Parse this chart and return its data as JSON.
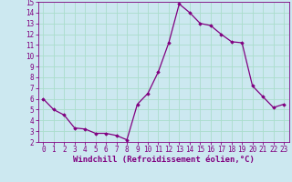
{
  "x": [
    0,
    1,
    2,
    3,
    4,
    5,
    6,
    7,
    8,
    9,
    10,
    11,
    12,
    13,
    14,
    15,
    16,
    17,
    18,
    19,
    20,
    21,
    22,
    23
  ],
  "y": [
    6.0,
    5.0,
    4.5,
    3.3,
    3.2,
    2.8,
    2.8,
    2.6,
    2.2,
    5.5,
    6.5,
    8.5,
    11.2,
    14.8,
    14.0,
    13.0,
    12.8,
    12.0,
    11.3,
    11.2,
    7.2,
    6.2,
    5.2,
    5.5
  ],
  "line_color": "#800080",
  "marker": "D",
  "marker_size": 1.8,
  "line_width": 0.9,
  "xlabel": "Windchill (Refroidissement éolien,°C)",
  "xlim": [
    -0.5,
    23.5
  ],
  "ylim": [
    2,
    15
  ],
  "yticks": [
    2,
    3,
    4,
    5,
    6,
    7,
    8,
    9,
    10,
    11,
    12,
    13,
    14,
    15
  ],
  "xticks": [
    0,
    1,
    2,
    3,
    4,
    5,
    6,
    7,
    8,
    9,
    10,
    11,
    12,
    13,
    14,
    15,
    16,
    17,
    18,
    19,
    20,
    21,
    22,
    23
  ],
  "background_color": "#cce8f0",
  "grid_color": "#aaddcc",
  "tick_label_fontsize": 5.5,
  "xlabel_fontsize": 6.5
}
